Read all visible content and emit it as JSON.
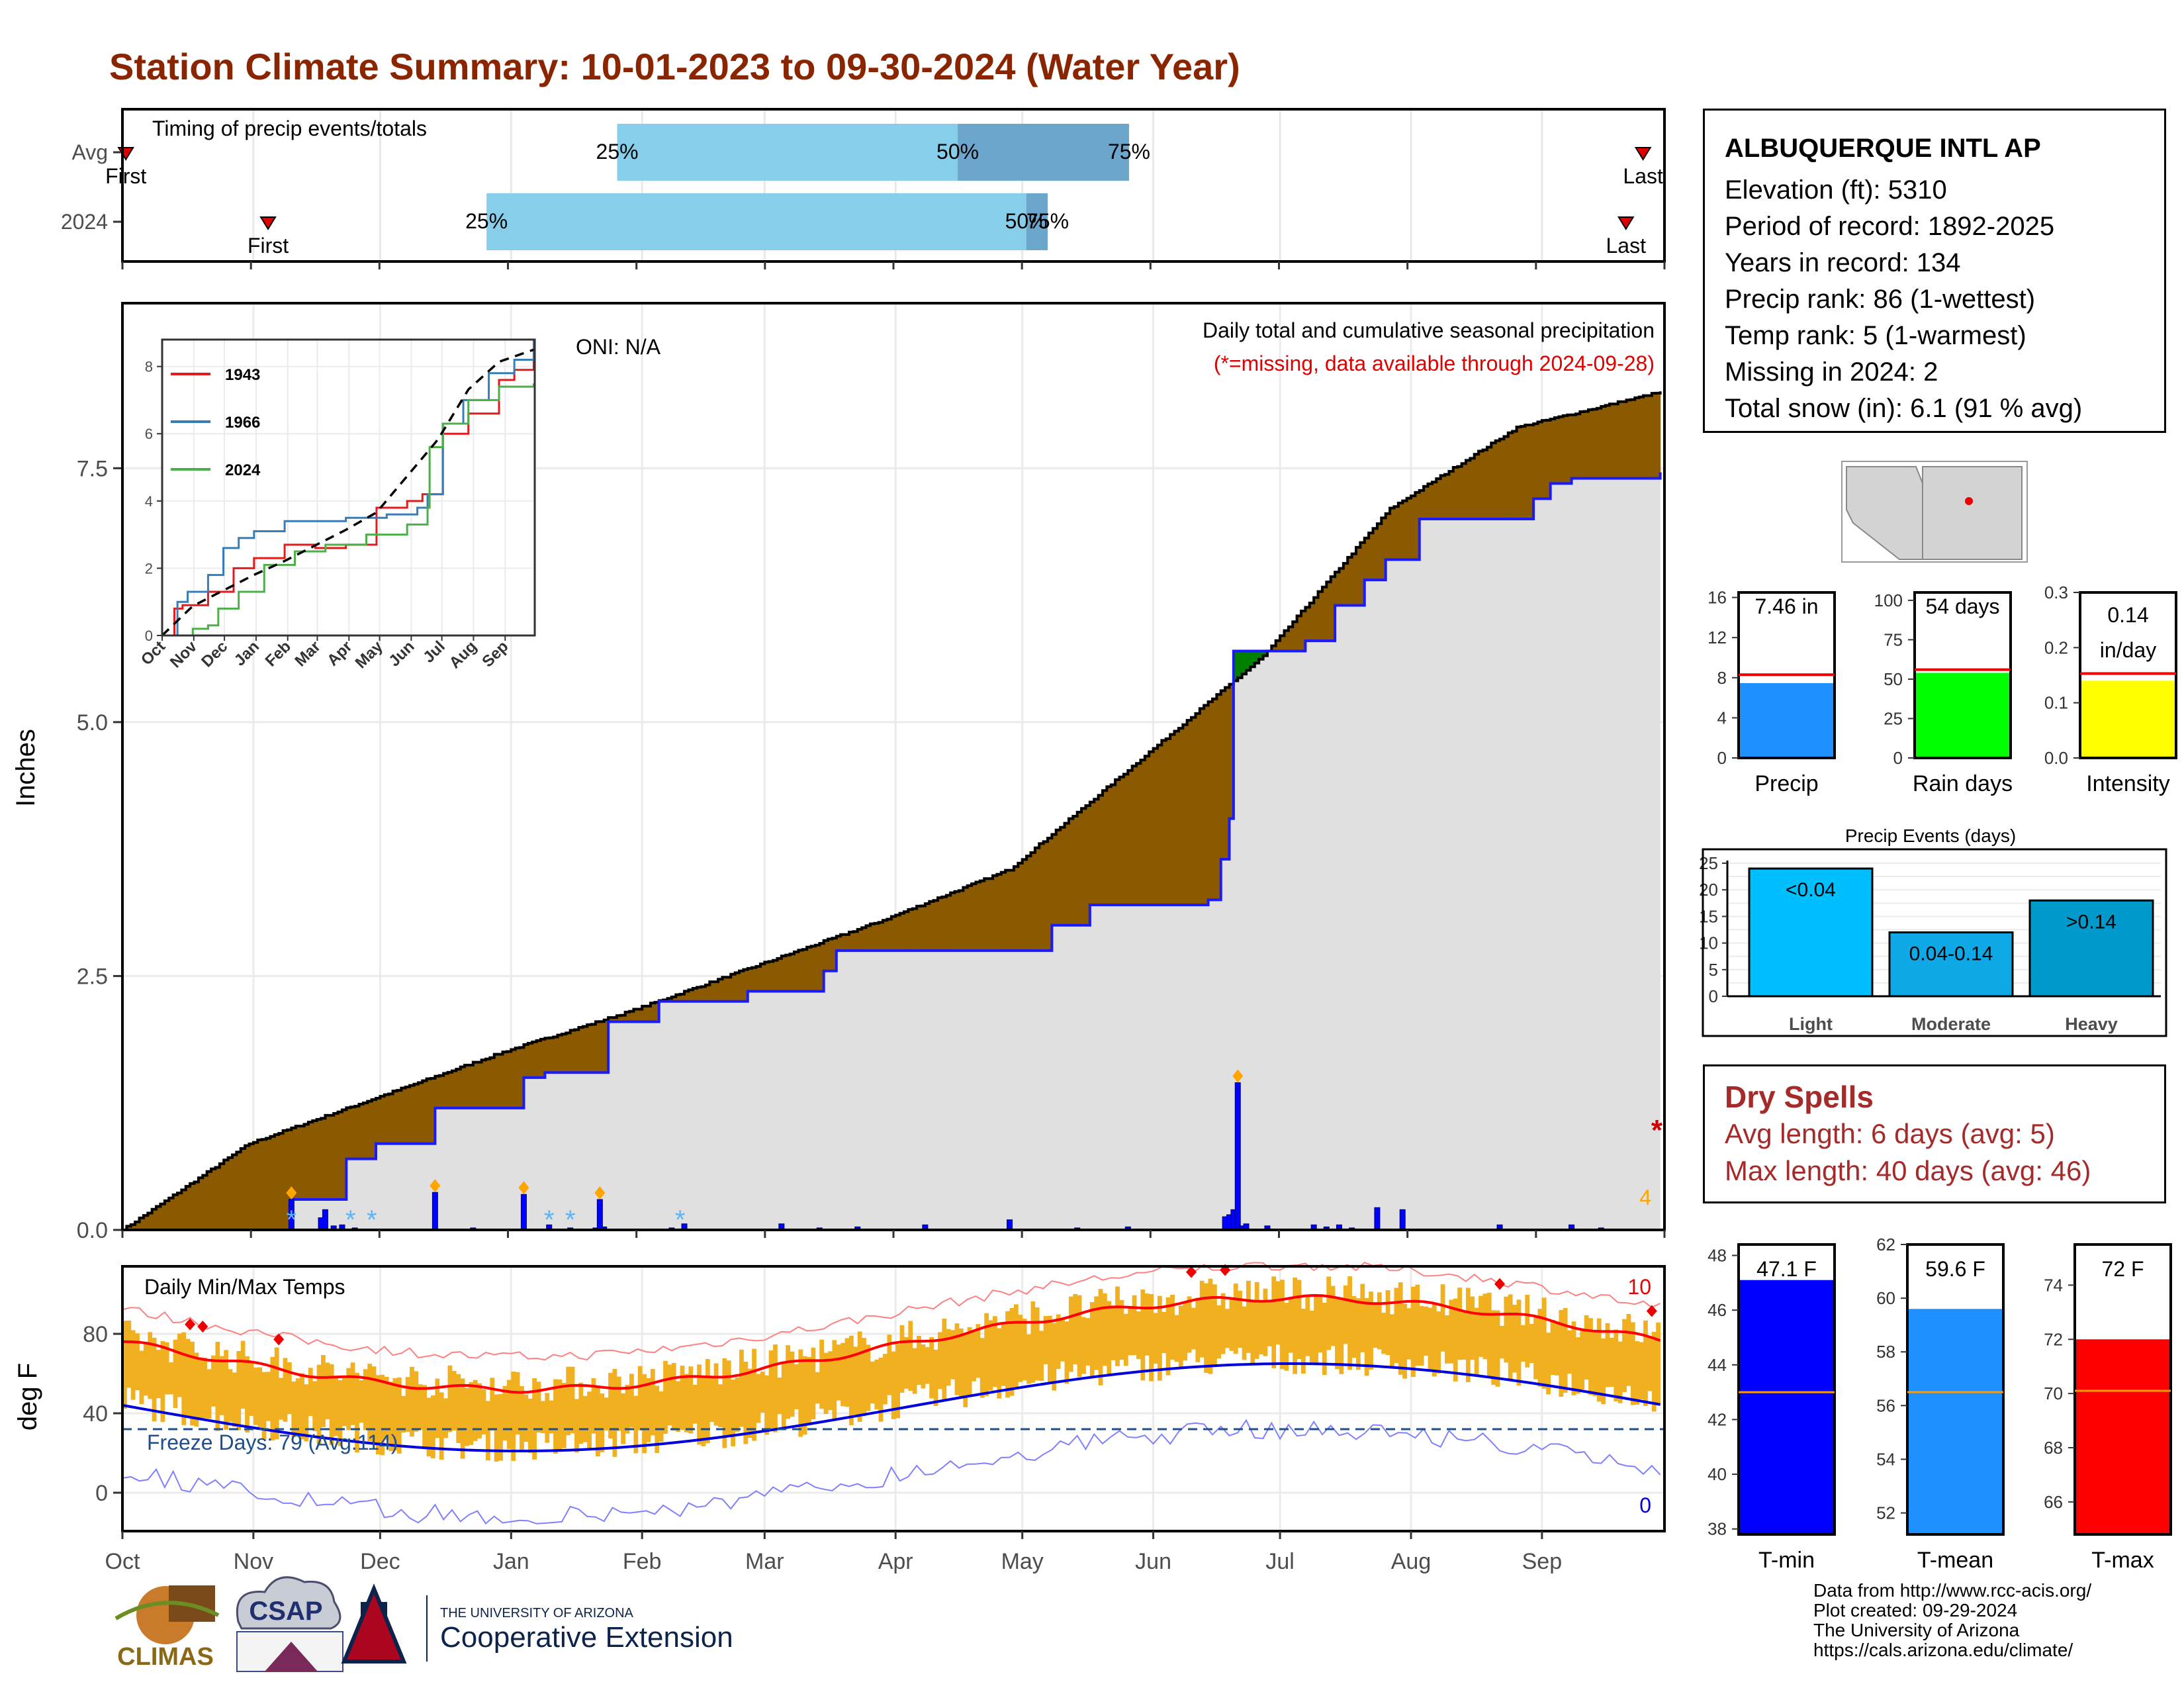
{
  "title": "Station Climate Summary: 10-01-2023 to 09-30-2024 (Water Year)",
  "station": {
    "name": "ALBUQUERQUE INTL AP",
    "lines": [
      "Elevation (ft): 5310",
      "Period of record: 1892-2025",
      "Years in record: 134",
      "Precip rank: 86 (1-wettest)",
      "Temp rank: 5 (1-warmest)",
      "Missing in 2024: 2",
      "Total snow (in): 6.1 (91 % avg)"
    ]
  },
  "timing": {
    "label": "Timing of precip events/totals",
    "rows": [
      "Avg",
      "2024"
    ],
    "marker_first": "First",
    "marker_last": "Last",
    "avg": {
      "first": 0.08,
      "p25": 11.55,
      "p50": 19.5,
      "p75": 23.5,
      "last": 35.5
    },
    "y2024": {
      "first": 3.4,
      "p25": 8.5,
      "p50": 21.1,
      "p75": 21.6,
      "last": 35.1
    },
    "pct_labels": [
      "25%",
      "50%",
      "75%"
    ]
  },
  "precip": {
    "ylabel": "Inches",
    "oni": "ONI: N/A",
    "header": "Daily total and cumulative seasonal precipitation",
    "missing_note": "(*=missing, data available through 2024-09-28)",
    "yticks": [
      "0.0",
      "2.5",
      "5.0",
      "7.5"
    ],
    "corner_count": "4",
    "avg_cumulative": {
      "x": [
        0,
        30,
        60,
        90,
        120,
        150,
        180,
        210,
        240,
        270,
        300,
        330,
        364
      ],
      "y": [
        0,
        0.85,
        1.3,
        1.75,
        2.15,
        2.6,
        3.05,
        3.55,
        4.6,
        5.65,
        7.1,
        7.9,
        8.25
      ]
    },
    "cumulative_2024": {
      "x": [
        0,
        37,
        40,
        47,
        53,
        60,
        67,
        74,
        83,
        95,
        100,
        113,
        115,
        121,
        127,
        136,
        148,
        166,
        169,
        180,
        190,
        220,
        229,
        257,
        260,
        262,
        263,
        263,
        271,
        280,
        287,
        294,
        299,
        307,
        314,
        323,
        334,
        338,
        343,
        350,
        364
      ],
      "y": [
        0,
        0,
        0.3,
        0.3,
        0.7,
        0.85,
        0.85,
        1.2,
        1.2,
        1.5,
        1.55,
        1.55,
        2.05,
        2.05,
        2.25,
        2.25,
        2.35,
        2.55,
        2.75,
        2.75,
        2.75,
        3.0,
        3.2,
        3.25,
        3.65,
        4.05,
        4.25,
        5.7,
        5.7,
        5.8,
        6.15,
        6.4,
        6.6,
        7.0,
        7.0,
        7.0,
        7.2,
        7.35,
        7.4,
        7.4,
        7.46
      ]
    },
    "daily_bars": {
      "x": [
        40,
        47,
        48,
        50,
        52,
        55,
        74,
        83,
        95,
        101,
        106,
        112,
        113,
        114,
        130,
        133,
        156,
        165,
        174,
        190,
        210,
        226,
        238,
        261,
        262,
        263,
        264,
        265,
        266,
        271,
        282,
        285,
        288,
        291,
        297,
        303,
        326,
        343,
        350
      ],
      "y": [
        0.3,
        0.12,
        0.2,
        0.04,
        0.05,
        0.02,
        0.37,
        0.02,
        0.35,
        0.05,
        0.02,
        0.02,
        0.3,
        0.03,
        0.02,
        0.06,
        0.06,
        0.02,
        0.03,
        0.05,
        0.1,
        0.02,
        0.03,
        0.13,
        0.15,
        0.2,
        1.45,
        0.04,
        0.06,
        0.04,
        0.05,
        0.03,
        0.05,
        0.02,
        0.22,
        0.2,
        0.05,
        0.05,
        0.02
      ]
    }
  },
  "inset": {
    "xlabels": [
      "Oct",
      "Nov",
      "Dec",
      "Jan",
      "Feb",
      "Mar",
      "Apr",
      "May",
      "Jun",
      "Jul",
      "Aug",
      "Sep"
    ],
    "yticks": [
      "0",
      "2",
      "4",
      "6",
      "8"
    ],
    "legend": [
      {
        "name": "1943",
        "color": "#e41a1c"
      },
      {
        "name": "1966",
        "color": "#377eb8"
      },
      {
        "name": "2024",
        "color": "#4daf4a"
      }
    ]
  },
  "temps": {
    "ylabel": "deg F",
    "label": "Daily Min/Max Temps",
    "freeze_label": "Freeze Days: 79 (Avg:114)",
    "yticks": [
      "0",
      "40",
      "80"
    ],
    "record_high_count": "10",
    "record_low_count": "0"
  },
  "months": [
    "Oct",
    "Nov",
    "Dec",
    "Jan",
    "Feb",
    "Mar",
    "Apr",
    "May",
    "Jun",
    "Jul",
    "Aug",
    "Sep"
  ],
  "side_bars": [
    {
      "label": "Precip",
      "value_label": "7.46 in",
      "value": 7.46,
      "avg": 8.3,
      "ymax": 16.5,
      "yticks": [
        "0",
        "4",
        "8",
        "12",
        "16"
      ],
      "color": "#1e90ff"
    },
    {
      "label": "Rain days",
      "value_label": "54 days",
      "value": 54,
      "avg": 56,
      "ymax": 105,
      "yticks": [
        "0",
        "25",
        "50",
        "75",
        "100"
      ],
      "color": "#00ff00"
    },
    {
      "label": "Intensity",
      "value_label": "0.14 in/day",
      "value": 0.14,
      "avg": 0.153,
      "ymax": 0.3,
      "yticks": [
        "0.0",
        "0.1",
        "0.2",
        "0.3"
      ],
      "color": "#ffff00"
    }
  ],
  "precip_events": {
    "title": "Precip Events (days)",
    "categories": [
      "Light",
      "Moderate",
      "Heavy"
    ],
    "bar_labels": [
      "<0.04",
      "0.04-0.14",
      ">0.14"
    ],
    "values": [
      24,
      12,
      18
    ],
    "yticks": [
      "0",
      "5",
      "10",
      "15",
      "20",
      "25"
    ],
    "colors": [
      "#00bfff",
      "#0fa8e6",
      "#0099cc"
    ]
  },
  "dry_spells": {
    "title": "Dry Spells",
    "avg_line": "Avg length: 6 days (avg: 5)",
    "max_line": "Max length: 40 days (avg: 46)"
  },
  "temp_bars": [
    {
      "label": "T-min",
      "value_label": "47.1 F",
      "value": 47.1,
      "avg": 43.0,
      "ymin": 37.8,
      "ymax": 48.4,
      "yticks": [
        "38",
        "40",
        "42",
        "44",
        "46",
        "48"
      ],
      "color": "#0000ff"
    },
    {
      "label": "T-mean",
      "value_label": "59.6 F",
      "value": 59.6,
      "avg": 56.5,
      "ymin": 51.2,
      "ymax": 62.0,
      "yticks": [
        "52",
        "54",
        "56",
        "58",
        "60",
        "62"
      ],
      "color": "#1e90ff"
    },
    {
      "label": "T-max",
      "value_label": "72 F",
      "value": 72.0,
      "avg": 70.1,
      "ymin": 64.8,
      "ymax": 75.5,
      "yticks": [
        "66",
        "68",
        "70",
        "72",
        "74"
      ],
      "color": "#ff0000"
    }
  ],
  "credits": [
    "Data from http://www.rcc-acis.org/",
    "Plot created: 09-29-2024",
    "The University of Arizona",
    "https://cals.arizona.edu/climate/"
  ],
  "logos": {
    "climas": "CLIMAS",
    "csap": "CSAP",
    "ua_line1": "THE UNIVERSITY OF ARIZONA",
    "ua_line2": "Cooperative Extension"
  }
}
